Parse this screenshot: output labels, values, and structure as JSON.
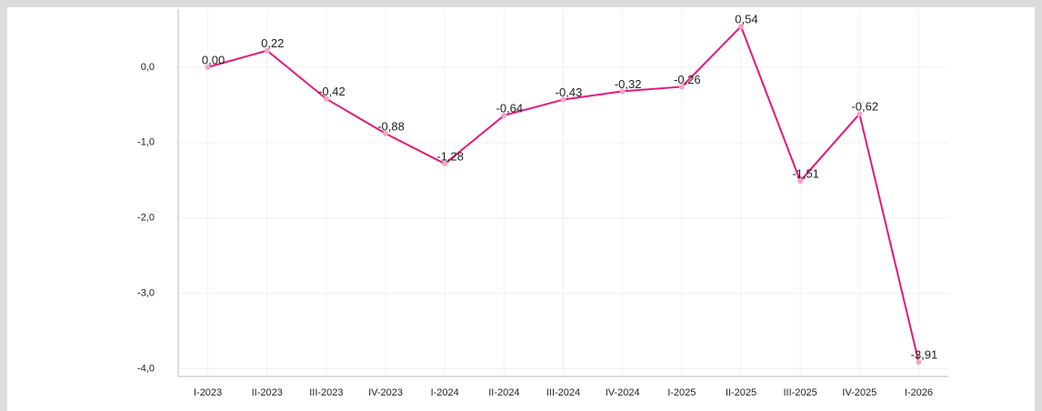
{
  "chart_data": {
    "type": "line",
    "categories": [
      "I-2023",
      "II-2023",
      "III-2023",
      "IV-2023",
      "I-2024",
      "II-2024",
      "III-2024",
      "IV-2024",
      "I-2025",
      "II-2025",
      "III-2025",
      "IV-2025",
      "I-2026"
    ],
    "values": [
      0.0,
      0.22,
      -0.42,
      -0.88,
      -1.28,
      -0.64,
      -0.43,
      -0.32,
      -0.26,
      0.54,
      -1.51,
      -0.62,
      -3.91
    ],
    "value_labels": [
      "0,00",
      "0,22",
      "-0,42",
      "-0,88",
      "-1,28",
      "-0,64",
      "-0,43",
      "-0,32",
      "-0,26",
      "0,54",
      "-1,51",
      "-0,62",
      "-3,91"
    ],
    "color": "#e5177b",
    "ylim": [
      -4.1,
      0.77
    ],
    "yticks": [
      {
        "value": 0,
        "label": "0,0"
      },
      {
        "value": -1,
        "label": "-1,0"
      },
      {
        "value": -2,
        "label": "-2,0"
      },
      {
        "value": -3,
        "label": "-3,0"
      },
      {
        "value": -4,
        "label": "-4,0"
      }
    ],
    "grid": true
  }
}
